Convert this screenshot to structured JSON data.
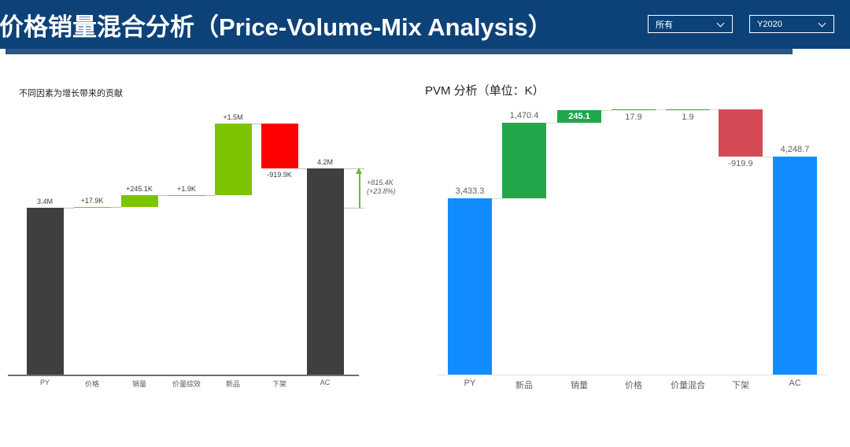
{
  "header": {
    "title": "价格销量混合分析（Price-Volume-Mix Analysis）",
    "bg_color": "#0C4278",
    "slicers": [
      {
        "value": "所有"
      },
      {
        "value": "Y2020"
      }
    ]
  },
  "chart_data": [
    {
      "type": "waterfall",
      "title": "不同因素为增长带来的贡献",
      "categories": [
        "PY",
        "价格",
        "销量",
        "价量综效",
        "新品",
        "下架",
        "AC"
      ],
      "values_k": [
        3433.3,
        17.9,
        245.1,
        1.9,
        1470.4,
        -919.9,
        4248.7
      ],
      "values_display": [
        "3.4M",
        "+17.9K",
        "+245.1K",
        "+1.9K",
        "+1.5M",
        "-919.9K",
        "4.2M"
      ],
      "bar_roles": [
        "total",
        "increase",
        "increase",
        "increase",
        "increase",
        "decrease",
        "total"
      ],
      "label_positions": [
        "above",
        "above",
        "above",
        "above",
        "above",
        "below",
        "above"
      ],
      "colors": {
        "total": "#3F3F3F",
        "increase": "#7CC400",
        "decrease": "#FE0000"
      },
      "annotation": {
        "line1": "+815.4K",
        "line2": "(+23.8%)",
        "arrow_color": "#65C02E",
        "text_color": "#595959"
      },
      "ylim": [
        0,
        5500
      ],
      "legend": "none",
      "grid": false
    },
    {
      "type": "waterfall",
      "title": "PVM 分析（单位：K）",
      "categories": [
        "PY",
        "新品",
        "销量",
        "价格",
        "价量混合",
        "下架",
        "AC"
      ],
      "values_k": [
        3433.3,
        1470.4,
        245.1,
        17.9,
        1.9,
        -919.9,
        4248.7
      ],
      "values_display": [
        "3,433.3",
        "1,470.4",
        "245.1",
        "17.9",
        "1.9",
        "-919.9",
        "4,248.7"
      ],
      "bar_roles": [
        "total",
        "increase",
        "increase",
        "increase",
        "increase",
        "decrease",
        "total"
      ],
      "label_positions": [
        "above",
        "above",
        "inside",
        "below",
        "below",
        "below",
        "above"
      ],
      "colors": {
        "total": "#118DFF",
        "increase": "#22A64A",
        "decrease": "#D64A57"
      },
      "annotation": null,
      "ylim": [
        0,
        5500
      ],
      "legend": "none",
      "grid": false
    }
  ]
}
